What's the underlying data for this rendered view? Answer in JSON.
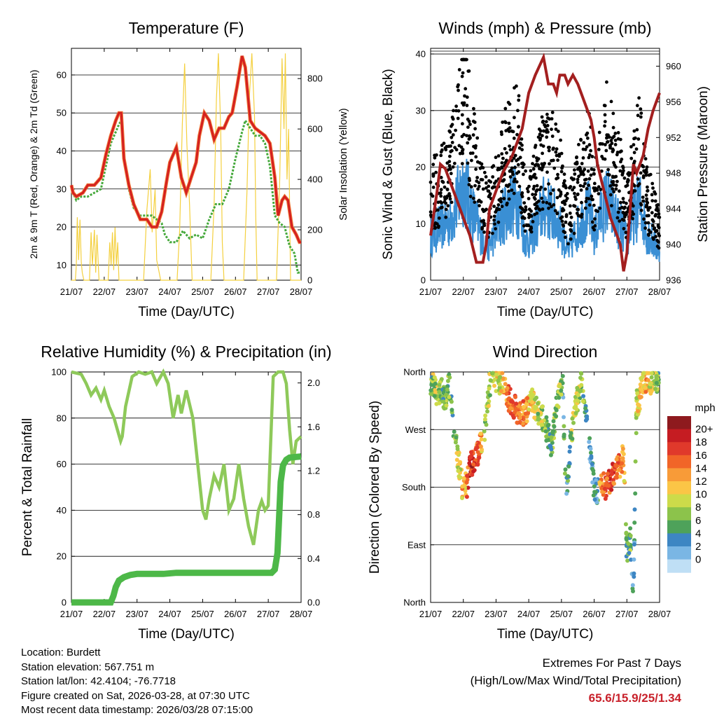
{
  "chart_data": [
    {
      "type": "line",
      "title": "Temperature (F)",
      "xlabel": "Time (Day/UTC)",
      "ylabel": "2m & 9m T (Red, Orange) & 2m Td (Green)",
      "y2label": "Solar Insolation (Yellow)",
      "x_ticks": [
        "21/07",
        "22/07",
        "23/07",
        "24/07",
        "25/07",
        "26/07",
        "27/07",
        "28/07"
      ],
      "ylim": [
        6,
        67
      ],
      "y_ticks": [
        10,
        20,
        30,
        40,
        50,
        60
      ],
      "y2lim": [
        0,
        920
      ],
      "y2_ticks": [
        0,
        200,
        400,
        600,
        800
      ],
      "series": [
        {
          "name": "2m T",
          "color": "#d42020",
          "x": [
            0,
            0.05,
            0.15,
            0.35,
            0.5,
            0.7,
            0.9,
            1.05,
            1.2,
            1.35,
            1.45,
            1.52,
            1.6,
            1.75,
            1.9,
            2.1,
            2.3,
            2.45,
            2.6,
            2.75,
            2.9,
            3.0,
            3.2,
            3.35,
            3.5,
            3.65,
            3.8,
            3.9,
            4.05,
            4.2,
            4.35,
            4.5,
            4.65,
            4.8,
            4.9,
            5.05,
            5.2,
            5.3,
            5.45,
            5.6,
            5.75,
            5.9,
            6.05,
            6.2,
            6.3,
            6.42,
            6.5,
            6.6,
            6.72,
            6.85,
            6.95,
            7.0
          ],
          "y": [
            31,
            29,
            28,
            29,
            31,
            31,
            33,
            39,
            44,
            48,
            50,
            50,
            38,
            31,
            26,
            22,
            22,
            20,
            20,
            24,
            32,
            37,
            41,
            33,
            29,
            33,
            37,
            44,
            50,
            48,
            43,
            46,
            46,
            49,
            50,
            57,
            65,
            62,
            48,
            46,
            45,
            44,
            42,
            33,
            23,
            27,
            28,
            27,
            20,
            18,
            16,
            16
          ]
        },
        {
          "name": "2m Td",
          "color": "#44a83a",
          "x": [
            0,
            0.05,
            0.15,
            0.3,
            0.5,
            0.7,
            0.9,
            1.05,
            1.2,
            1.35,
            1.45,
            1.52,
            1.6,
            1.75,
            1.9,
            2.1,
            2.3,
            2.45,
            2.6,
            2.75,
            2.85,
            3.0,
            3.2,
            3.4,
            3.6,
            3.8,
            4.0,
            4.2,
            4.4,
            4.6,
            4.8,
            5.0,
            5.2,
            5.3,
            5.45,
            5.6,
            5.75,
            5.9,
            6.05,
            6.2,
            6.35,
            6.5,
            6.65,
            6.8,
            6.9,
            7.0
          ],
          "y": [
            31,
            29,
            27,
            28,
            28,
            29,
            30,
            36,
            42,
            45,
            47,
            48,
            38,
            30,
            25,
            23,
            23,
            23,
            22,
            21,
            18,
            16,
            16,
            19,
            17,
            18,
            17,
            22,
            26,
            26,
            30,
            38,
            45,
            48,
            46,
            44,
            44,
            42,
            36,
            23,
            21,
            20,
            15,
            13,
            8,
            8
          ]
        },
        {
          "name": "Solar Insolation",
          "color": "#f4d03f",
          "axis": "right",
          "x": [
            0.0,
            0.12,
            0.15,
            0.18,
            0.22,
            0.26,
            0.3,
            0.33,
            0.38,
            0.55,
            0.6,
            0.64,
            0.7,
            0.74,
            0.78,
            0.84,
            1.12,
            1.17,
            1.21,
            1.25,
            1.29,
            1.33,
            1.37,
            1.41,
            1.45,
            1.7,
            2.2,
            2.3,
            2.4,
            2.46,
            2.55,
            2.6,
            2.72,
            3.22,
            3.3,
            3.38,
            3.45,
            3.52,
            3.6,
            3.68,
            4.25,
            4.35,
            4.42,
            4.48,
            4.55,
            4.6,
            4.65,
            5.25,
            5.35,
            5.42,
            5.5,
            5.58,
            5.62,
            5.66,
            6.25,
            6.35,
            6.42,
            6.48,
            6.52,
            6.57,
            6.62,
            6.68,
            7.0
          ],
          "y": [
            0,
            0,
            60,
            250,
            80,
            240,
            70,
            30,
            0,
            0,
            190,
            60,
            200,
            30,
            180,
            0,
            0,
            150,
            60,
            190,
            40,
            210,
            60,
            150,
            0,
            0,
            0,
            280,
            440,
            190,
            360,
            80,
            0,
            0,
            200,
            620,
            860,
            540,
            300,
            0,
            0,
            300,
            720,
            900,
            600,
            150,
            0,
            0,
            350,
            720,
            900,
            650,
            250,
            0,
            0,
            400,
            880,
            600,
            900,
            400,
            600,
            0,
            0
          ]
        }
      ]
    },
    {
      "type": "scatter",
      "title": "Winds (mph) & Pressure (mb)",
      "xlabel": "Time (Day/UTC)",
      "ylabel": "Sonic Wind & Gust (Blue, Black)",
      "y2label": "Station Pressure (Maroon)",
      "x_ticks": [
        "21/07",
        "22/07",
        "23/07",
        "24/07",
        "25/07",
        "26/07",
        "27/07",
        "28/07"
      ],
      "ylim": [
        0,
        41
      ],
      "y_ticks": [
        0,
        10,
        20,
        30,
        40
      ],
      "y2lim": [
        936,
        962
      ],
      "y2_ticks": [
        936,
        940,
        944,
        948,
        952,
        956,
        960
      ],
      "gust_envelope": {
        "x": [
          0,
          0.3,
          0.6,
          0.85,
          1.0,
          1.2,
          1.5,
          1.75,
          2.0,
          2.3,
          2.6,
          2.75,
          2.85,
          3.0,
          3.3,
          3.5,
          3.75,
          3.95,
          4.2,
          4.45,
          4.7,
          4.85,
          5.0,
          5.2,
          5.4,
          5.6,
          5.8,
          6.0,
          6.2,
          6.4,
          6.6,
          6.8,
          7.0
        ],
        "y": [
          14,
          16,
          18,
          26,
          31,
          24,
          16,
          12,
          15,
          21,
          24,
          21,
          14,
          12,
          18,
          22,
          20,
          18,
          10,
          15,
          19,
          21,
          14,
          20,
          24,
          20,
          17,
          12,
          19,
          22,
          14,
          12,
          8
        ]
      },
      "sustained_envelope": {
        "x": [
          0,
          0.3,
          0.6,
          0.85,
          1.0,
          1.2,
          1.5,
          1.75,
          2.0,
          2.3,
          2.6,
          2.75,
          2.85,
          3.0,
          3.3,
          3.5,
          3.75,
          3.95,
          4.2,
          4.45,
          4.7,
          4.85,
          5.0,
          5.2,
          5.4,
          5.6,
          5.8,
          6.0,
          6.2,
          6.4,
          6.6,
          6.8,
          7.0
        ],
        "y": [
          8,
          10,
          11,
          15,
          18,
          14,
          9,
          6,
          9,
          13,
          15,
          13,
          8,
          7,
          11,
          14,
          12,
          10,
          5,
          9,
          12,
          13,
          8,
          12,
          15,
          12,
          10,
          7,
          12,
          14,
          9,
          7,
          5
        ]
      },
      "series": [
        {
          "name": "Station Pressure",
          "color": "#a31f1f",
          "axis": "right",
          "x": [
            0,
            0.2,
            0.3,
            0.45,
            0.6,
            0.8,
            1.0,
            1.2,
            1.4,
            1.6,
            1.7,
            1.8,
            2.0,
            2.2,
            2.5,
            2.8,
            3.0,
            3.2,
            3.45,
            3.6,
            3.75,
            3.85,
            3.95,
            4.1,
            4.2,
            4.35,
            4.5,
            4.7,
            4.9,
            5.0,
            5.1,
            5.3,
            5.5,
            5.7,
            5.8,
            5.9,
            6.0,
            6.1,
            6.2,
            6.3,
            6.5,
            6.65,
            6.8,
            6.9,
            7.0
          ],
          "y": [
            941,
            946,
            949,
            948.5,
            947,
            945,
            943,
            941,
            938,
            938,
            940,
            944,
            946,
            948,
            950,
            953,
            957,
            959,
            961,
            958,
            958,
            957,
            959,
            959,
            958,
            959,
            958,
            956,
            954,
            952,
            949,
            946,
            943,
            941,
            940,
            937,
            939,
            944,
            949,
            948,
            950,
            953,
            955,
            956,
            957
          ]
        }
      ]
    },
    {
      "type": "line",
      "title": "Relative Humidity (%) & Precipitation (in)",
      "xlabel": "Time (Day/UTC)",
      "ylabel": "Percent & Total Rainfall",
      "x_ticks": [
        "21/07",
        "22/07",
        "23/07",
        "24/07",
        "25/07",
        "26/07",
        "27/07",
        "28/07"
      ],
      "ylim": [
        0,
        100
      ],
      "y_ticks": [
        0,
        20,
        40,
        60,
        80,
        100
      ],
      "y2lim": [
        0,
        2.1
      ],
      "y2_ticks": [
        "0.0",
        "0.4",
        "0.8",
        "1.2",
        "1.6",
        "2.0"
      ],
      "series": [
        {
          "name": "Relative Humidity",
          "color": "#8ec95a",
          "x": [
            0,
            0.3,
            0.45,
            0.6,
            0.75,
            0.9,
            1.0,
            1.15,
            1.3,
            1.4,
            1.5,
            1.55,
            1.65,
            1.85,
            2.05,
            2.25,
            2.45,
            2.6,
            2.8,
            2.95,
            3.1,
            3.25,
            3.35,
            3.5,
            3.7,
            3.85,
            4.0,
            4.1,
            4.2,
            4.35,
            4.5,
            4.65,
            4.8,
            4.95,
            5.1,
            5.25,
            5.4,
            5.55,
            5.7,
            5.8,
            5.9,
            6.0,
            6.15,
            6.3,
            6.45,
            6.55,
            6.65,
            6.75,
            6.85,
            7.0
          ],
          "y": [
            100,
            99,
            95,
            90,
            93,
            88,
            92,
            85,
            80,
            75,
            70,
            72,
            85,
            98,
            100,
            99,
            100,
            95,
            100,
            95,
            80,
            90,
            82,
            92,
            80,
            60,
            40,
            36,
            45,
            55,
            50,
            60,
            40,
            45,
            60,
            45,
            33,
            25,
            40,
            44,
            40,
            42,
            98,
            100,
            100,
            95,
            75,
            60,
            70,
            72
          ]
        },
        {
          "name": "Total Rainfall",
          "color": "#4db848",
          "axis": "right",
          "x": [
            0,
            1.2,
            1.28,
            1.35,
            1.45,
            1.6,
            1.8,
            2.0,
            2.8,
            3.2,
            4.0,
            5.0,
            5.8,
            6.1,
            6.2,
            6.28,
            6.32,
            6.38,
            6.45,
            6.55,
            6.65,
            7.0
          ],
          "y": [
            0.0,
            0.0,
            0.06,
            0.14,
            0.2,
            0.23,
            0.25,
            0.26,
            0.26,
            0.27,
            0.27,
            0.27,
            0.27,
            0.27,
            0.3,
            0.45,
            0.7,
            1.1,
            1.25,
            1.3,
            1.32,
            1.33
          ]
        }
      ]
    },
    {
      "type": "scatter",
      "title": "Wind Direction",
      "xlabel": "Time (Day/UTC)",
      "ylabel": "Direction (Colored By Speed)",
      "x_ticks": [
        "21/07",
        "22/07",
        "23/07",
        "24/07",
        "25/07",
        "26/07",
        "27/07",
        "28/07"
      ],
      "ylim": [
        0,
        360
      ],
      "y_ticks": [
        "North",
        "East",
        "South",
        "West",
        "North"
      ],
      "colorbar": {
        "title": "mph",
        "labels": [
          "20+",
          "18",
          "16",
          "14",
          "12",
          "10",
          "8",
          "6",
          "4",
          "2",
          "0"
        ],
        "colors": [
          "#8e1a1e",
          "#c51c22",
          "#e0392b",
          "#f16528",
          "#f89b38",
          "#fbc546",
          "#cddb4a",
          "#8cc34b",
          "#4ea25a",
          "#3d86c3",
          "#7ab6e4",
          "#bfdff5"
        ]
      },
      "series": [
        {
          "name": "Direction",
          "color": "speed-colored",
          "x": [
            0.0,
            0.1,
            0.2,
            0.35,
            0.45,
            0.55,
            0.6,
            0.65,
            1.0,
            1.05,
            1.1,
            1.15,
            1.2,
            1.3,
            1.4,
            1.5,
            1.6,
            1.7,
            1.8,
            1.9,
            2.0,
            2.1,
            2.2,
            2.35,
            2.5,
            2.65,
            2.8,
            2.95,
            3.1,
            3.25,
            3.4,
            3.55,
            3.7,
            3.85,
            3.95,
            4.05,
            4.1,
            4.15,
            4.25,
            4.3,
            4.4,
            4.55,
            4.6,
            4.65,
            4.8,
            4.9,
            5.0,
            5.1,
            5.15,
            5.2,
            5.3,
            5.45,
            5.6,
            5.75,
            5.9,
            6.0,
            6.1,
            6.2,
            6.3,
            6.35,
            6.45,
            6.6,
            6.75,
            6.85,
            6.95
          ],
          "y": [
            335,
            345,
            320,
            330,
            310,
            340,
            335,
            290,
            170,
            190,
            180,
            200,
            215,
            220,
            225,
            240,
            260,
            285,
            340,
            355,
            350,
            345,
            340,
            320,
            310,
            300,
            295,
            300,
            315,
            300,
            290,
            270,
            240,
            310,
            330,
            345,
            200,
            170,
            230,
            260,
            300,
            330,
            355,
            320,
            270,
            220,
            180,
            170,
            190,
            200,
            180,
            185,
            200,
            210,
            230,
            70,
            100,
            10,
            320,
            300,
            340,
            350,
            345,
            355,
            340
          ],
          "speed": [
            7,
            9,
            10,
            6,
            8,
            7,
            9,
            5,
            14,
            12,
            16,
            17,
            19,
            18,
            17,
            15,
            10,
            7,
            10,
            9,
            12,
            10,
            14,
            16,
            17,
            16,
            15,
            14,
            12,
            10,
            8,
            7,
            6,
            8,
            9,
            5,
            6,
            4,
            6,
            8,
            10,
            9,
            7,
            8,
            5,
            3,
            4,
            3,
            12,
            14,
            16,
            18,
            17,
            15,
            13,
            6,
            7,
            3,
            9,
            12,
            12,
            13,
            10,
            9,
            7
          ]
        }
      ]
    }
  ],
  "info": {
    "location": "Location: Burdett",
    "elevation": "Station elevation: 567.751 m",
    "latlon": "Station lat/lon: 42.4104; -76.7718",
    "created": "Figure created on Sat, 2026-03-28, at 07:30 UTC",
    "recent": "Most recent data timestamp: 2026/03/28 07:15:00"
  },
  "extremes": {
    "line1": "Extremes For Past 7 Days",
    "line2": "(High/Low/Max Wind/Total Precipitation)",
    "values": "65.6/15.9/25/1.34"
  }
}
